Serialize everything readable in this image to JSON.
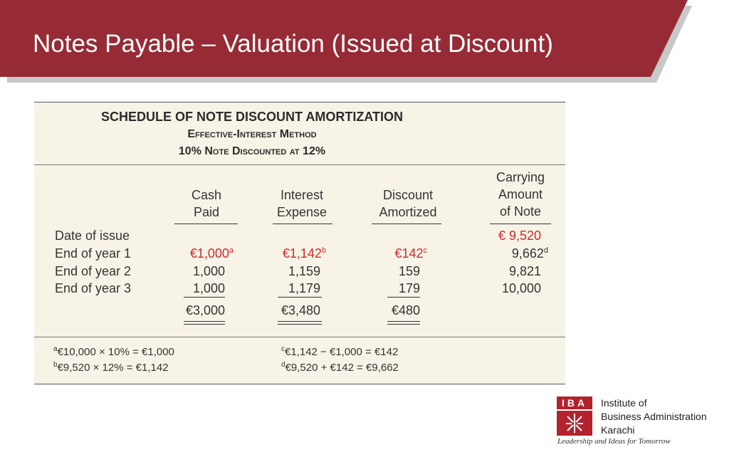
{
  "slide": {
    "title": "Notes Payable – Valuation (Issued at Discount)"
  },
  "colors": {
    "header_red": "#962b35",
    "header_shadow": "#c8c8c8",
    "panel_bg": "#f7f4e7",
    "highlight_red": "#d2282b"
  },
  "schedule": {
    "title": "SCHEDULE OF NOTE DISCOUNT AMORTIZATION",
    "method": "Effective-Interest Method",
    "subtitle": "10% Note Discounted at 12%",
    "columns": {
      "cash": [
        "Cash",
        "Paid"
      ],
      "interest": [
        "Interest",
        "Expense"
      ],
      "discount": [
        "Discount",
        "Amortized"
      ],
      "carrying": [
        "Carrying",
        "Amount",
        "of Note"
      ]
    },
    "rows": [
      {
        "label": "Date of issue",
        "cash": "",
        "interest": "",
        "discount": "",
        "carrying": "€ 9,520"
      },
      {
        "label": "End of year 1",
        "cash": "€1,000",
        "cash_note": "a",
        "interest": "€1,142",
        "interest_note": "b",
        "discount": "€142",
        "discount_note": "c",
        "carrying": "9,662",
        "carrying_note": "d"
      },
      {
        "label": "End of year 2",
        "cash": "1,000",
        "interest": "1,159",
        "discount": "159",
        "carrying": "9,821"
      },
      {
        "label": "End of year 3",
        "cash": "1,000",
        "interest": "1,179",
        "discount": "179",
        "carrying": "10,000"
      }
    ],
    "totals": {
      "cash": "€3,000",
      "interest": "€3,480",
      "discount": "€480"
    },
    "footnotes": {
      "a": {
        "mark": "a",
        "text": "€10,000 × 10% = €1,000"
      },
      "b": {
        "mark": "b",
        "text": "€9,520 × 12% = €1,142"
      },
      "c": {
        "mark": "c",
        "text": "€1,142 − €1,000 = €142"
      },
      "d": {
        "mark": "d",
        "text": "€9,520 + €142 = €9,662"
      }
    }
  },
  "logo": {
    "letters": "IBA",
    "line1": "Institute of",
    "line2": "Business Administration",
    "line3": "Karachi",
    "tagline": "Leadership and Ideas for Tomorrow"
  }
}
